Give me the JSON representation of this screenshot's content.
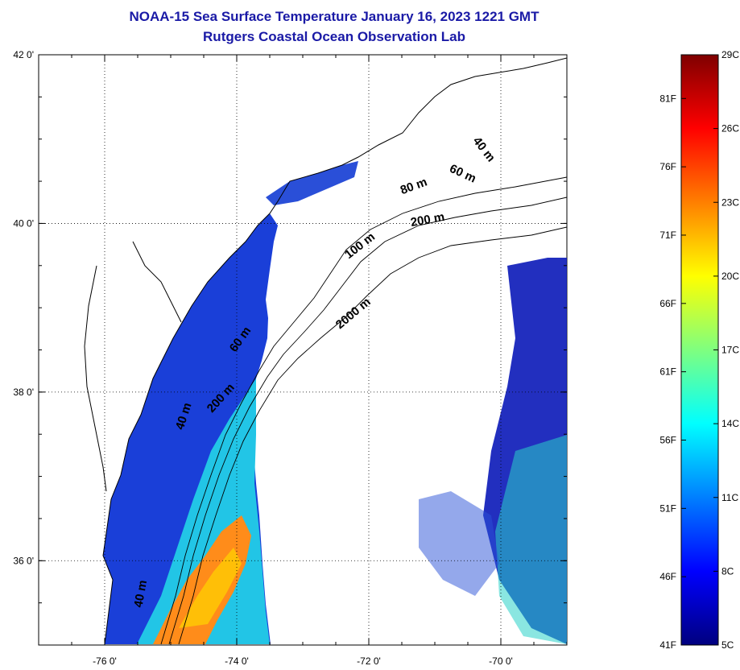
{
  "title": {
    "line1": "NOAA-15 Sea Surface Temperature January 16, 2023 1221 GMT",
    "line2": "Rutgers Coastal Ocean Observation Lab"
  },
  "map": {
    "lat_ticks": [
      {
        "value": 42,
        "label": "42 0'"
      },
      {
        "value": 40,
        "label": "40 0'"
      },
      {
        "value": 38,
        "label": "38 0'"
      },
      {
        "value": 36,
        "label": "36 0'"
      }
    ],
    "lon_ticks": [
      {
        "value": -76,
        "label": "-76 0'"
      },
      {
        "value": -74,
        "label": "-74 0'"
      },
      {
        "value": -72,
        "label": "-72 0'"
      },
      {
        "value": -70,
        "label": "-70 0'"
      }
    ],
    "lon_range": [
      -77,
      -69
    ],
    "lat_range": [
      35,
      42
    ],
    "grid": "dotted",
    "contour_labels": [
      {
        "text": "40 m",
        "lon": -70.3,
        "lat": 40.85,
        "rot": 52
      },
      {
        "text": "60 m",
        "lon": -70.6,
        "lat": 40.55,
        "rot": 25
      },
      {
        "text": "80 m",
        "lon": -71.3,
        "lat": 40.4,
        "rot": -20
      },
      {
        "text": "200 m",
        "lon": -71.1,
        "lat": 40.0,
        "rot": -10
      },
      {
        "text": "100 m",
        "lon": -72.1,
        "lat": 39.7,
        "rot": -38
      },
      {
        "text": "2000 m",
        "lon": -72.2,
        "lat": 38.9,
        "rot": -40
      },
      {
        "text": "60 m",
        "lon": -73.9,
        "lat": 38.6,
        "rot": -55
      },
      {
        "text": "200 m",
        "lon": -74.2,
        "lat": 37.9,
        "rot": -48
      },
      {
        "text": "40 m",
        "lon": -74.75,
        "lat": 37.7,
        "rot": -72
      },
      {
        "text": "40 m",
        "lon": -75.4,
        "lat": 35.6,
        "rot": -80
      }
    ]
  },
  "colorbar": {
    "colors": [
      "#00007f",
      "#0000ff",
      "#007fff",
      "#00ffff",
      "#7fff7f",
      "#ffff00",
      "#ff7f00",
      "#ff0000",
      "#7f0000"
    ],
    "celsius_labels": [
      "29C",
      "26C",
      "23C",
      "20C",
      "17C",
      "14C",
      "11C",
      "8C",
      "5C"
    ],
    "fahrenheit_labels": [
      "81F",
      "76F",
      "71F",
      "66F",
      "61F",
      "56F",
      "51F",
      "46F",
      "41F"
    ],
    "min_c": 5,
    "max_c": 29
  }
}
